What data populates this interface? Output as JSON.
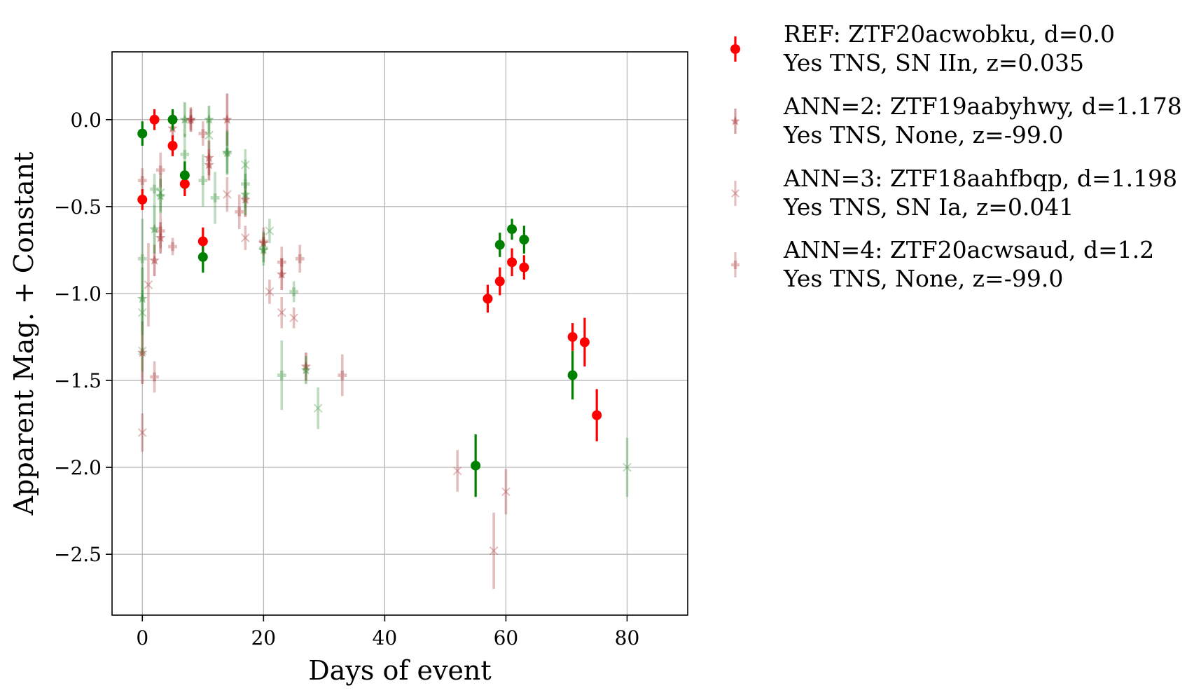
{
  "chart_data": {
    "type": "scatter",
    "title": "",
    "xlabel": "Days of event",
    "ylabel": "Apparent Mag. + Constant",
    "xlim": [
      -5,
      90
    ],
    "ylim": [
      -2.85,
      0.39
    ],
    "y_inverted": false,
    "grid": true,
    "legend_position": "outside-right",
    "xticks": [
      0,
      20,
      40,
      60,
      80
    ],
    "xtick_labels": [
      "0",
      "20",
      "40",
      "60",
      "80"
    ],
    "yticks": [
      0.0,
      -0.5,
      -1.0,
      -1.5,
      -2.0,
      -2.5
    ],
    "ytick_labels": [
      "0.0",
      "−0.5",
      "−1.0",
      "−1.5",
      "−2.0",
      "−2.5"
    ],
    "series": [
      {
        "name": "REF: ZTF20acwobku, d=0.0",
        "name_line2": "Yes TNS, SN IIn, z=0.035",
        "marker": "circle",
        "alpha": 1.0,
        "color": "#ff0000",
        "points": [
          {
            "x": 0,
            "y": -0.46,
            "err": 0.06,
            "band": "r"
          },
          {
            "x": 2,
            "y": 0.0,
            "err": 0.06,
            "band": "r"
          },
          {
            "x": 5,
            "y": -0.15,
            "err": 0.06,
            "band": "r"
          },
          {
            "x": 7,
            "y": -0.37,
            "err": 0.07,
            "band": "r"
          },
          {
            "x": 10,
            "y": -0.7,
            "err": 0.08,
            "band": "r"
          },
          {
            "x": 57,
            "y": -1.03,
            "err": 0.08,
            "band": "r"
          },
          {
            "x": 59,
            "y": -0.93,
            "err": 0.08,
            "band": "r"
          },
          {
            "x": 61,
            "y": -0.82,
            "err": 0.08,
            "band": "r"
          },
          {
            "x": 63,
            "y": -0.85,
            "err": 0.07,
            "band": "r"
          },
          {
            "x": 71,
            "y": -1.25,
            "err": 0.08,
            "band": "r"
          },
          {
            "x": 73,
            "y": -1.28,
            "err": 0.14,
            "band": "r"
          },
          {
            "x": 75,
            "y": -1.7,
            "err": 0.15,
            "band": "r"
          },
          {
            "x": 0,
            "y": -0.08,
            "err": 0.07,
            "band": "g"
          },
          {
            "x": 5,
            "y": 0.0,
            "err": 0.06,
            "band": "g"
          },
          {
            "x": 7,
            "y": -0.32,
            "err": 0.08,
            "band": "g"
          },
          {
            "x": 10,
            "y": -0.79,
            "err": 0.09,
            "band": "g"
          },
          {
            "x": 55,
            "y": -1.99,
            "err": 0.18,
            "band": "g"
          },
          {
            "x": 59,
            "y": -0.72,
            "err": 0.07,
            "band": "g"
          },
          {
            "x": 61,
            "y": -0.63,
            "err": 0.06,
            "band": "g"
          },
          {
            "x": 63,
            "y": -0.69,
            "err": 0.08,
            "band": "g"
          },
          {
            "x": 71,
            "y": -1.47,
            "err": 0.14,
            "band": "g"
          }
        ]
      },
      {
        "name": "ANN=2: ZTF19aabyhwy, d=1.178",
        "name_line2": "Yes TNS, None, z=-99.0",
        "marker": "star",
        "alpha": 0.45,
        "points": [
          {
            "x": 0,
            "y": -1.34,
            "err": 0.18,
            "band": "r"
          },
          {
            "x": 2,
            "y": -0.81,
            "err": 0.09,
            "band": "r"
          },
          {
            "x": 3,
            "y": -0.68,
            "err": 0.09,
            "band": "r"
          },
          {
            "x": 5,
            "y": -0.05,
            "err": 0.1,
            "band": "r"
          },
          {
            "x": 8,
            "y": 0.0,
            "err": 0.07,
            "band": "r"
          },
          {
            "x": 11,
            "y": -0.22,
            "err": 0.1,
            "band": "r"
          },
          {
            "x": 11,
            "y": -0.26,
            "err": 0.09,
            "band": "r"
          },
          {
            "x": 14,
            "y": 0.0,
            "err": 0.15,
            "band": "r"
          },
          {
            "x": 17,
            "y": -0.46,
            "err": 0.1,
            "band": "r"
          },
          {
            "x": 20,
            "y": -0.71,
            "err": 0.06,
            "band": "r"
          },
          {
            "x": 23,
            "y": -0.89,
            "err": 0.09,
            "band": "r"
          },
          {
            "x": 27,
            "y": -1.42,
            "err": 0.08,
            "band": "r"
          },
          {
            "x": 0,
            "y": -1.03,
            "err": 0.18,
            "band": "g"
          },
          {
            "x": 2,
            "y": -0.63,
            "err": 0.14,
            "band": "g"
          },
          {
            "x": 3,
            "y": -0.44,
            "err": 0.1,
            "band": "g"
          },
          {
            "x": 7,
            "y": 0.0,
            "err": 0.1,
            "band": "g"
          },
          {
            "x": 11,
            "y": 0.0,
            "err": 0.08,
            "band": "g"
          },
          {
            "x": 14,
            "y": -0.19,
            "err": 0.12,
            "band": "g"
          },
          {
            "x": 17,
            "y": -0.43,
            "err": 0.12,
            "band": "g"
          },
          {
            "x": 20,
            "y": -0.75,
            "err": 0.07,
            "band": "g"
          },
          {
            "x": 27,
            "y": -1.44,
            "err": 0.08,
            "band": "g"
          }
        ]
      },
      {
        "name": "ANN=3: ZTF18aahfbqp, d=1.198",
        "name_line2": "Yes TNS, SN Ia, z=0.041",
        "marker": "x",
        "alpha": 0.3,
        "points": [
          {
            "x": 0,
            "y": -1.8,
            "err": 0.11,
            "band": "r"
          },
          {
            "x": 1,
            "y": -0.95,
            "err": 0.24,
            "band": "r"
          },
          {
            "x": 14,
            "y": -0.43,
            "err": 0.1,
            "band": "r"
          },
          {
            "x": 17,
            "y": -0.68,
            "err": 0.07,
            "band": "r"
          },
          {
            "x": 21,
            "y": -0.99,
            "err": 0.07,
            "band": "r"
          },
          {
            "x": 23,
            "y": -1.11,
            "err": 0.09,
            "band": "r"
          },
          {
            "x": 25,
            "y": -1.14,
            "err": 0.06,
            "band": "r"
          },
          {
            "x": 52,
            "y": -2.02,
            "err": 0.12,
            "band": "r"
          },
          {
            "x": 58,
            "y": -2.48,
            "err": 0.22,
            "band": "r"
          },
          {
            "x": 60,
            "y": -2.14,
            "err": 0.13,
            "band": "r"
          },
          {
            "x": 0,
            "y": -1.11,
            "err": 0.13,
            "band": "g"
          },
          {
            "x": 0,
            "y": -1.33,
            "err": 0.12,
            "band": "g"
          },
          {
            "x": 3,
            "y": -0.42,
            "err": 0.11,
            "band": "g"
          },
          {
            "x": 11,
            "y": -0.09,
            "err": 0.08,
            "band": "g"
          },
          {
            "x": 17,
            "y": -0.26,
            "err": 0.09,
            "band": "g"
          },
          {
            "x": 21,
            "y": -0.64,
            "err": 0.07,
            "band": "g"
          },
          {
            "x": 29,
            "y": -1.66,
            "err": 0.12,
            "band": "g"
          },
          {
            "x": 80,
            "y": -2.0,
            "err": 0.17,
            "band": "g"
          }
        ]
      },
      {
        "name": "ANN=4: ZTF20acwsaud, d=1.2",
        "name_line2": "Yes TNS, None, z=-99.0",
        "marker": "plus",
        "alpha": 0.3,
        "points": [
          {
            "x": 0,
            "y": -0.35,
            "err": 0.07,
            "band": "r"
          },
          {
            "x": 3,
            "y": -0.29,
            "err": 0.1,
            "band": "r"
          },
          {
            "x": 3,
            "y": -0.64,
            "err": 0.1,
            "band": "r"
          },
          {
            "x": 5,
            "y": -0.73,
            "err": 0.05,
            "band": "r"
          },
          {
            "x": 8,
            "y": 0.0,
            "err": 0.06,
            "band": "r"
          },
          {
            "x": 10,
            "y": -0.08,
            "err": 0.07,
            "band": "r"
          },
          {
            "x": 16,
            "y": -0.53,
            "err": 0.1,
            "band": "r"
          },
          {
            "x": 20,
            "y": -0.7,
            "err": 0.08,
            "band": "r"
          },
          {
            "x": 23,
            "y": -0.82,
            "err": 0.09,
            "band": "r"
          },
          {
            "x": 26,
            "y": -0.8,
            "err": 0.08,
            "band": "r"
          },
          {
            "x": 33,
            "y": -1.47,
            "err": 0.12,
            "band": "r"
          },
          {
            "x": 2,
            "y": -1.48,
            "err": 0.09,
            "band": "r"
          },
          {
            "x": 0,
            "y": -0.8,
            "err": 0.23,
            "band": "g"
          },
          {
            "x": 2,
            "y": -0.4,
            "err": 0.09,
            "band": "g"
          },
          {
            "x": 7,
            "y": -0.2,
            "err": 0.12,
            "band": "g"
          },
          {
            "x": 10,
            "y": -0.35,
            "err": 0.15,
            "band": "g"
          },
          {
            "x": 12,
            "y": -0.45,
            "err": 0.15,
            "band": "g"
          },
          {
            "x": 14,
            "y": -0.19,
            "err": 0.13,
            "band": "g"
          },
          {
            "x": 17,
            "y": -0.37,
            "err": 0.14,
            "band": "g"
          },
          {
            "x": 20,
            "y": -0.74,
            "err": 0.1,
            "band": "g"
          },
          {
            "x": 23,
            "y": -1.47,
            "err": 0.2,
            "band": "g"
          },
          {
            "x": 25,
            "y": -0.99,
            "err": 0.06,
            "band": "g"
          }
        ]
      }
    ]
  },
  "colors": {
    "r_band": "#ff0000",
    "g_band": "#008000",
    "ann_r_band": "#a52a2a",
    "ann_g_band": "#2e8b2e",
    "grid": "#b0b0b0"
  }
}
